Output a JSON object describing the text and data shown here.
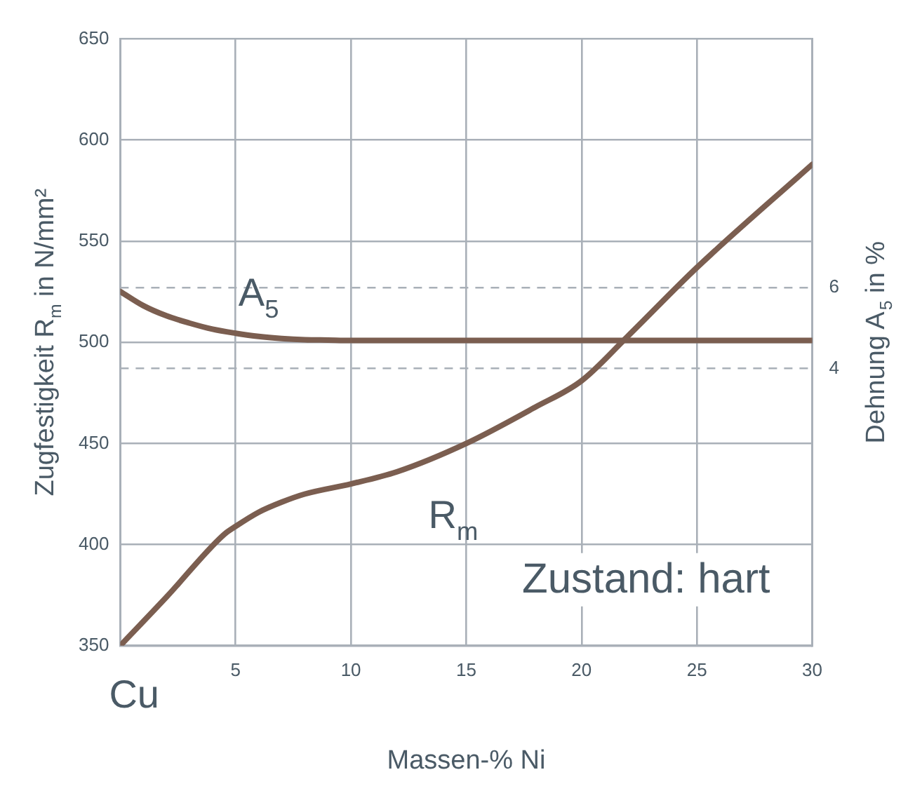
{
  "chart_data": {
    "type": "line",
    "xlabel": "Massen-% Ni",
    "ylabel": "Zugfestigkeit R$_{m}$ in N/mm²",
    "y2label": "Dehnung A$_{5}$ in %",
    "xlim": [
      0,
      30
    ],
    "xticks": [
      5,
      10,
      15,
      20,
      25,
      30
    ],
    "ylim": [
      350,
      650
    ],
    "yticks": [
      350,
      400,
      450,
      500,
      550,
      600,
      650
    ],
    "y2lim": [
      -2.84,
      12.13
    ],
    "y2ticks": [
      4,
      6
    ],
    "grid": true,
    "legend": false,
    "marker": "none",
    "line_style": "solid",
    "series": [
      {
        "name": "A$_{5}$",
        "color": "#7b5e50",
        "axis": "y2",
        "x": [
          0,
          1,
          2,
          3,
          4,
          5,
          6,
          7,
          8,
          9,
          10,
          30
        ],
        "values": [
          5.9,
          5.55,
          5.3,
          5.12,
          4.97,
          4.87,
          4.79,
          4.74,
          4.71,
          4.7,
          4.69,
          4.69
        ]
      },
      {
        "name": "R$_{m}$",
        "color": "#7b5e50",
        "axis": "y",
        "x": [
          0,
          2,
          4.5,
          5,
          6,
          7,
          8,
          10,
          12,
          15,
          18,
          20,
          22,
          25,
          30
        ],
        "values": [
          350,
          374,
          405,
          409,
          416,
          421,
          425,
          430,
          436,
          450,
          468,
          481,
          503,
          537,
          588
        ]
      }
    ],
    "annotations": [
      "Zustand: hart",
      "Cu"
    ]
  }
}
